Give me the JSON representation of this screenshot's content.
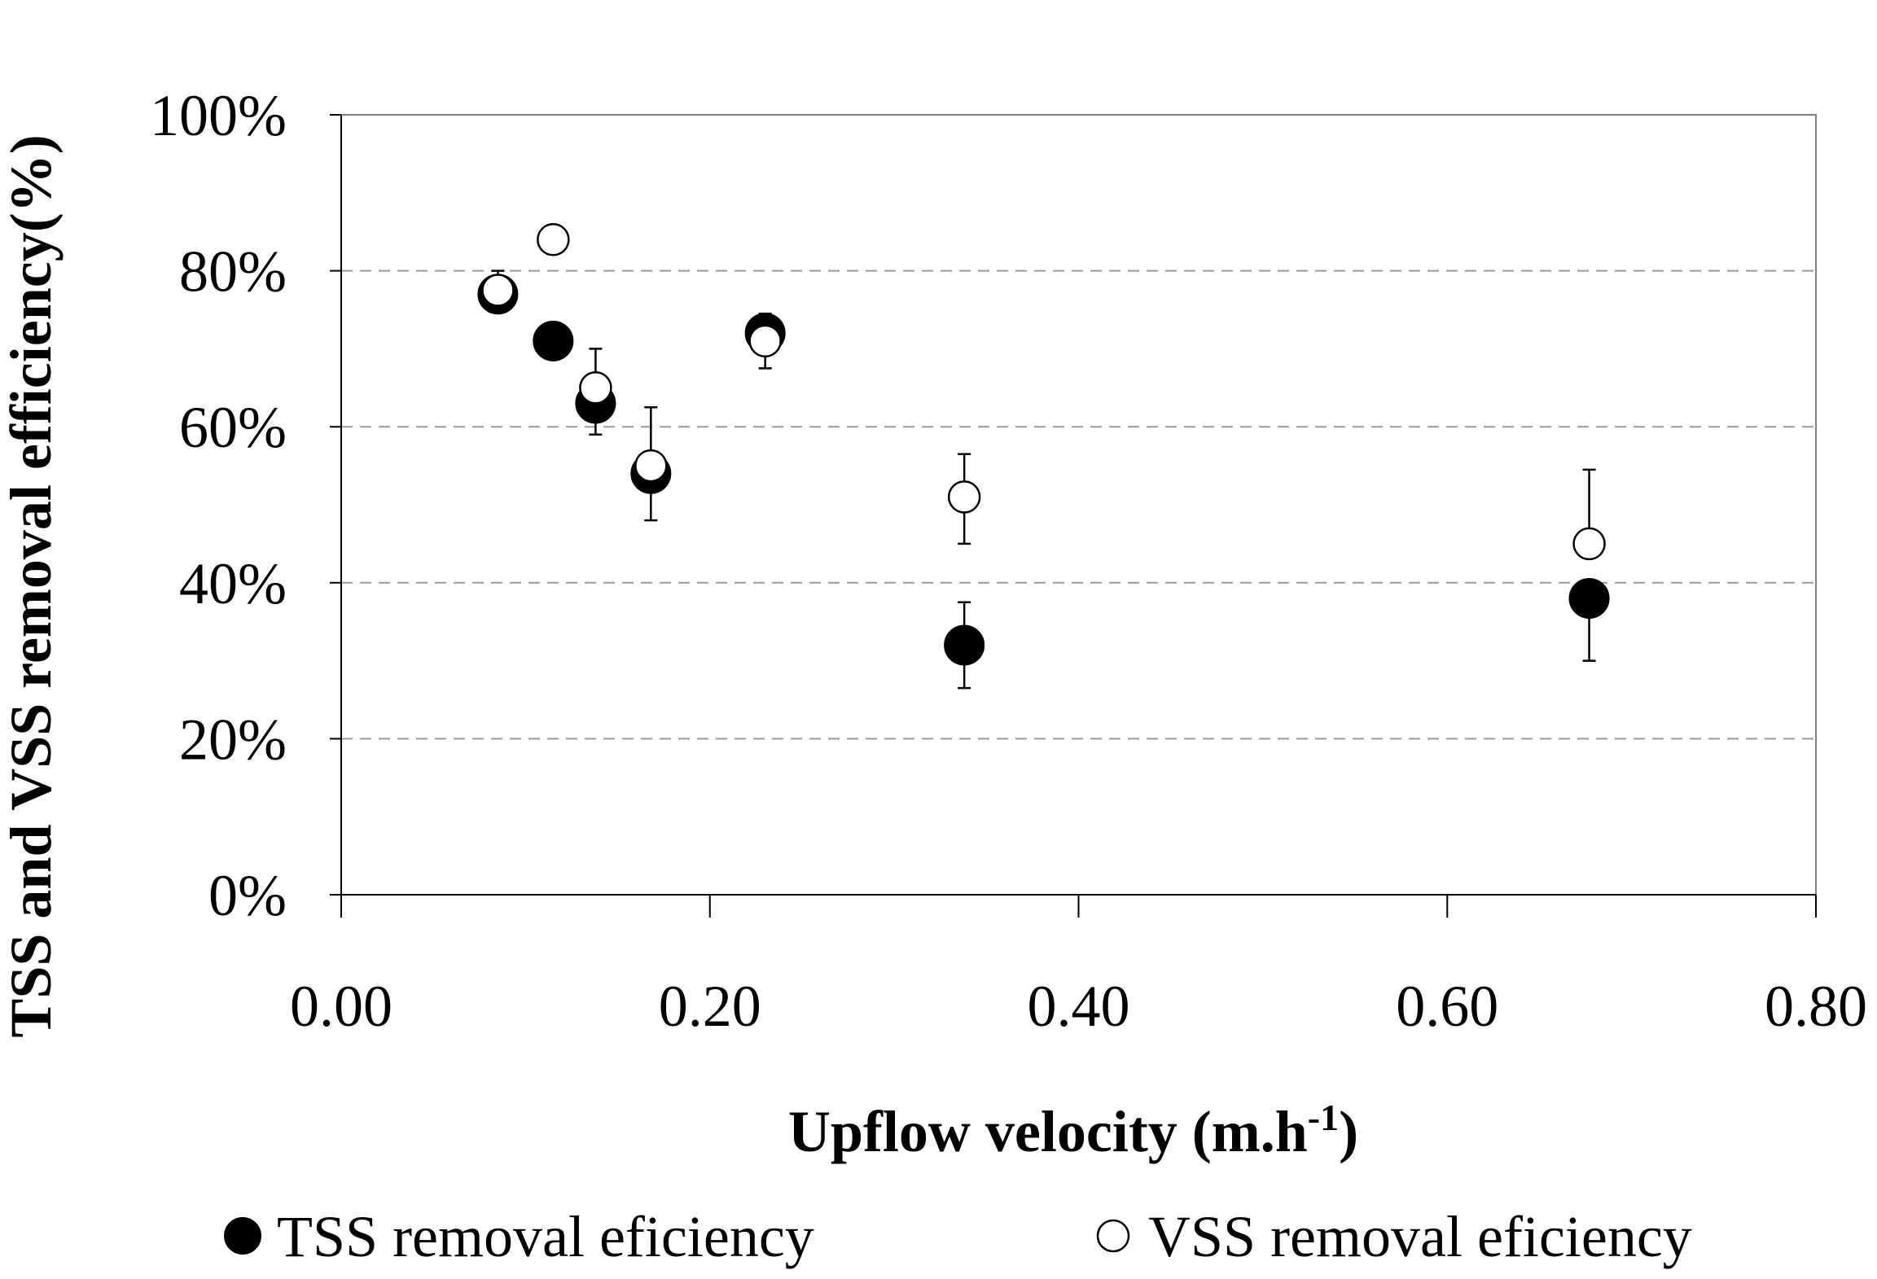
{
  "chart_data": {
    "type": "scatter",
    "title": "",
    "xlabel": "Upflow velocity  (m.h",
    "xlabel_superscript": "-1",
    "xlabel_suffix": ")",
    "ylabel": "TSS and VSS removal efficiency(%)",
    "xlim": [
      0,
      0.8
    ],
    "ylim": [
      0,
      100
    ],
    "x_ticks": [
      0,
      0.2,
      0.4,
      0.6,
      0.8
    ],
    "x_tick_labels": [
      "0.00",
      "0.20",
      "0.40",
      "0.60",
      "0.80"
    ],
    "y_ticks": [
      0,
      20,
      40,
      60,
      80,
      100
    ],
    "y_tick_labels": [
      "0%",
      "20%",
      "40%",
      "60%",
      "80%",
      "100%"
    ],
    "grid": "horizontal dashed",
    "legend_position": "bottom",
    "series": [
      {
        "name": "TSS removal eficiency",
        "marker": "filled-circle",
        "color": "#000000",
        "x": [
          0.085,
          0.115,
          0.138,
          0.168,
          0.23,
          0.338,
          0.677
        ],
        "y": [
          77,
          71,
          63,
          54,
          72,
          32,
          38
        ],
        "err_lo": [
          0,
          0,
          4,
          6,
          0,
          5.5,
          8
        ],
        "err_hi": [
          0,
          0,
          0,
          0,
          0,
          5.5,
          0
        ]
      },
      {
        "name": "VSS removal eficiency",
        "marker": "open-circle",
        "color": "#ffffff",
        "x": [
          0.085,
          0.115,
          0.138,
          0.168,
          0.23,
          0.338,
          0.677
        ],
        "y": [
          77.5,
          84,
          65,
          55,
          71,
          51,
          45
        ],
        "err_lo": [
          0,
          0,
          0,
          0,
          3.5,
          6,
          0
        ],
        "err_hi": [
          2.5,
          0,
          5,
          7.5,
          3.5,
          5.5,
          9.5
        ]
      }
    ]
  }
}
